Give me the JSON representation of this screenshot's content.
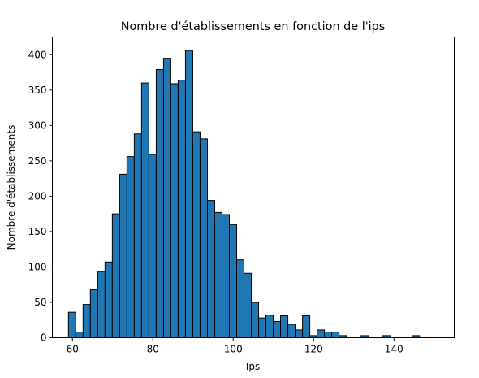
{
  "chart_data": {
    "type": "bar",
    "title": "Nombre d'établissements en fonction de l'ips",
    "xlabel": "Ips",
    "ylabel": "Nombre d'établissements",
    "xlim": [
      55,
      155
    ],
    "ylim": [
      0,
      425
    ],
    "x_ticks": [
      60,
      80,
      100,
      120,
      140
    ],
    "y_ticks": [
      0,
      50,
      100,
      150,
      200,
      250,
      300,
      350,
      400
    ],
    "bar_color": "#1f77b4",
    "edge_color": "#000000",
    "grid": false,
    "bins": {
      "start": 59.0,
      "width": 1.82,
      "counts": [
        36,
        8,
        47,
        68,
        94,
        107,
        175,
        231,
        256,
        288,
        360,
        259,
        379,
        395,
        359,
        364,
        406,
        291,
        281,
        194,
        177,
        174,
        160,
        110,
        91,
        50,
        28,
        32,
        23,
        31,
        19,
        11,
        31,
        3,
        11,
        8,
        8,
        3,
        0,
        0,
        3,
        0,
        0,
        3,
        0,
        0,
        0,
        3
      ]
    }
  }
}
